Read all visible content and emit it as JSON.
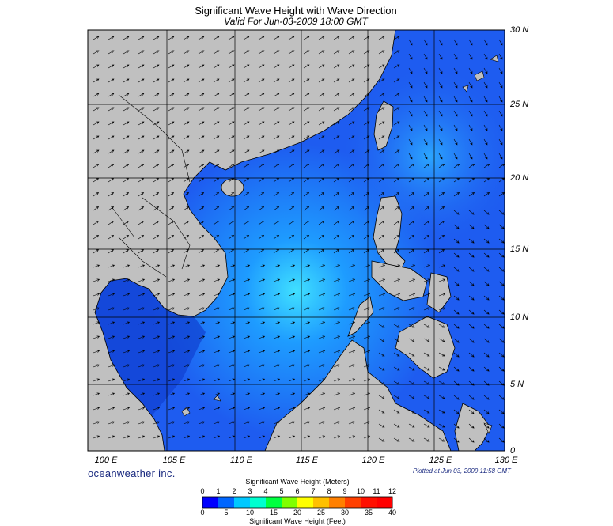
{
  "header": {
    "title": "Significant Wave Height with Wave Direction",
    "subtitle": "Valid For Jun-03-2009 18:00 GMT"
  },
  "map": {
    "lon_range": [
      100,
      130
    ],
    "lat_range": [
      0,
      30
    ],
    "lat_labels": [
      "30 N",
      "25 N",
      "20 N",
      "15 N",
      "10 N",
      "5 N",
      "0"
    ],
    "lon_labels": [
      "100 E",
      "105 E",
      "110 E",
      "115 E",
      "120 E",
      "125 E",
      "130 E"
    ],
    "land_color": "#c0c0c0",
    "sea_color": "#1e5cf0"
  },
  "footer": {
    "brand": "oceanweather inc.",
    "plotted": "Plotted at Jun 03, 2009 11:58 GMT"
  },
  "colorbar": {
    "title_top": "Significant Wave Height (Meters)",
    "title_bottom": "Significant Wave Height (Feet)",
    "meter_ticks": [
      "0",
      "1",
      "2",
      "3",
      "4",
      "5",
      "6",
      "7",
      "8",
      "9",
      "10",
      "11",
      "12"
    ],
    "feet_ticks": [
      "0",
      "5",
      "10",
      "15",
      "20",
      "25",
      "30",
      "35",
      "40"
    ],
    "colors": [
      "#0000ff",
      "#0066ff",
      "#00c8ff",
      "#00ffd0",
      "#00ff40",
      "#80ff00",
      "#ffff00",
      "#ffc000",
      "#ff8000",
      "#ff4000",
      "#ff1000",
      "#ff0000"
    ]
  }
}
